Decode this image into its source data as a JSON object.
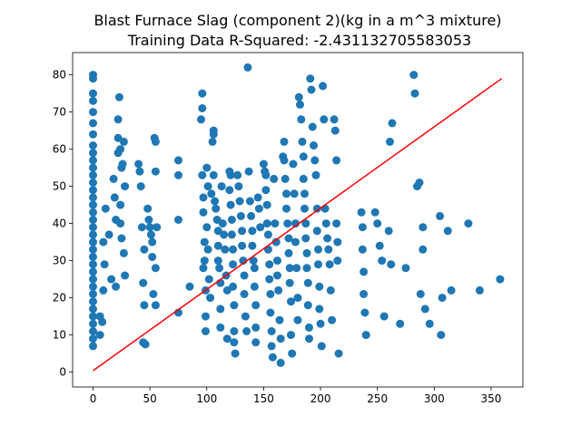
{
  "chart_data": {
    "type": "scatter",
    "title": "Blast Furnace Slag (component 2)(kg in a m^3 mixture)",
    "subtitle": "Training Data R-Squared: -2.431132705583053",
    "xlabel": "",
    "ylabel": "",
    "xlim": [
      -18,
      378
    ],
    "ylim": [
      -4,
      86
    ],
    "xticks": [
      0,
      50,
      100,
      150,
      200,
      250,
      300,
      350
    ],
    "yticks": [
      0,
      10,
      20,
      30,
      40,
      50,
      60,
      70,
      80
    ],
    "grid": false,
    "legend": "none",
    "colors": {
      "points": "#1f77b4",
      "fit_line": "#ff0000"
    },
    "fit_line": {
      "x": [
        0,
        359.4
      ],
      "y": [
        0.4,
        79
      ]
    },
    "series": [
      {
        "points": [
          [
            0,
            80
          ],
          [
            0,
            79
          ],
          [
            0,
            75
          ],
          [
            0,
            73
          ],
          [
            0,
            70
          ],
          [
            0,
            67
          ],
          [
            0,
            64
          ],
          [
            0,
            61
          ],
          [
            0,
            59
          ],
          [
            0,
            57
          ],
          [
            0,
            55
          ],
          [
            0,
            53
          ],
          [
            0,
            51
          ],
          [
            0,
            49
          ],
          [
            0,
            47
          ],
          [
            0,
            45
          ],
          [
            0,
            43
          ],
          [
            0,
            41
          ],
          [
            0,
            39
          ],
          [
            0,
            37
          ],
          [
            0,
            35
          ],
          [
            0,
            33
          ],
          [
            0,
            31
          ],
          [
            0,
            29
          ],
          [
            0,
            27
          ],
          [
            0,
            25
          ],
          [
            0,
            23
          ],
          [
            0,
            21
          ],
          [
            0,
            19
          ],
          [
            0,
            17
          ],
          [
            0,
            15
          ],
          [
            0,
            13
          ],
          [
            0,
            11
          ],
          [
            0,
            9
          ],
          [
            0,
            7
          ],
          [
            6,
            15
          ],
          [
            8,
            13.5
          ],
          [
            6,
            10
          ],
          [
            9,
            22
          ],
          [
            9,
            35
          ],
          [
            11,
            44
          ],
          [
            10,
            29
          ],
          [
            14,
            37
          ],
          [
            16,
            25
          ],
          [
            18,
            52
          ],
          [
            19,
            47
          ],
          [
            20,
            41
          ],
          [
            20,
            23
          ],
          [
            22,
            68
          ],
          [
            23,
            74
          ],
          [
            22,
            63
          ],
          [
            22,
            59
          ],
          [
            24,
            60
          ],
          [
            25,
            55
          ],
          [
            26,
            56
          ],
          [
            27,
            62
          ],
          [
            28,
            50
          ],
          [
            24,
            45
          ],
          [
            24,
            40
          ],
          [
            25,
            36
          ],
          [
            27,
            32
          ],
          [
            28,
            26
          ],
          [
            40,
            56
          ],
          [
            41,
            54
          ],
          [
            42,
            50
          ],
          [
            43,
            39
          ],
          [
            45,
            33
          ],
          [
            44,
            24
          ],
          [
            45,
            18
          ],
          [
            44,
            8
          ],
          [
            46,
            7.5
          ],
          [
            48,
            44
          ],
          [
            49,
            41
          ],
          [
            50,
            39
          ],
          [
            51,
            37
          ],
          [
            52,
            35
          ],
          [
            52,
            31
          ],
          [
            53,
            21
          ],
          [
            54,
            63
          ],
          [
            55,
            62
          ],
          [
            55,
            54
          ],
          [
            55,
            28
          ],
          [
            55,
            18
          ],
          [
            56,
            39
          ],
          [
            75,
            57
          ],
          [
            75,
            53
          ],
          [
            75,
            41
          ],
          [
            75,
            16
          ],
          [
            85,
            23
          ],
          [
            95,
            68
          ],
          [
            96,
            71
          ],
          [
            96,
            75
          ],
          [
            96,
            53
          ],
          [
            97,
            47
          ],
          [
            97,
            43
          ],
          [
            98,
            35
          ],
          [
            98,
            30
          ],
          [
            97,
            28
          ],
          [
            99,
            22
          ],
          [
            99,
            15
          ],
          [
            99,
            11
          ],
          [
            100,
            55
          ],
          [
            101,
            50
          ],
          [
            100,
            39
          ],
          [
            101,
            33
          ],
          [
            102,
            25
          ],
          [
            103,
            20
          ],
          [
            104,
            48
          ],
          [
            105,
            62
          ],
          [
            106,
            64
          ],
          [
            106,
            65
          ],
          [
            106,
            53
          ],
          [
            107,
            46
          ],
          [
            108,
            44
          ],
          [
            109,
            41
          ],
          [
            110,
            38
          ],
          [
            110,
            34
          ],
          [
            110,
            30
          ],
          [
            111,
            28
          ],
          [
            112,
            24
          ],
          [
            112,
            17
          ],
          [
            112,
            12
          ],
          [
            113,
            50
          ],
          [
            114,
            40
          ],
          [
            115,
            37
          ],
          [
            116,
            33
          ],
          [
            117,
            26
          ],
          [
            118,
            22
          ],
          [
            118,
            9
          ],
          [
            120,
            54
          ],
          [
            120,
            49
          ],
          [
            121,
            53
          ],
          [
            121,
            45
          ],
          [
            122,
            41
          ],
          [
            122,
            37
          ],
          [
            123,
            33
          ],
          [
            123,
            29
          ],
          [
            123,
            23
          ],
          [
            124,
            18
          ],
          [
            124,
            11
          ],
          [
            124,
            8
          ],
          [
            125,
            5
          ],
          [
            127,
            53
          ],
          [
            128,
            50
          ],
          [
            129,
            46
          ],
          [
            130,
            42
          ],
          [
            131,
            38
          ],
          [
            131,
            34
          ],
          [
            132,
            30
          ],
          [
            133,
            26
          ],
          [
            133,
            21
          ],
          [
            134,
            15
          ],
          [
            135,
            11
          ],
          [
            136,
            82
          ],
          [
            137,
            54
          ],
          [
            138,
            46
          ],
          [
            139,
            42
          ],
          [
            140,
            38
          ],
          [
            140,
            34
          ],
          [
            141,
            30
          ],
          [
            142,
            28
          ],
          [
            142,
            23
          ],
          [
            143,
            18
          ],
          [
            143,
            12
          ],
          [
            143,
            8
          ],
          [
            145,
            47
          ],
          [
            146,
            44
          ],
          [
            147,
            39
          ],
          [
            150,
            56
          ],
          [
            151,
            54
          ],
          [
            152,
            53
          ],
          [
            152,
            49
          ],
          [
            153,
            45
          ],
          [
            153,
            40
          ],
          [
            154,
            37
          ],
          [
            154,
            33
          ],
          [
            155,
            29
          ],
          [
            155,
            25
          ],
          [
            156,
            21
          ],
          [
            156,
            16
          ],
          [
            157,
            11
          ],
          [
            157,
            7
          ],
          [
            158,
            4
          ],
          [
            159,
            52
          ],
          [
            160,
            40
          ],
          [
            161,
            35
          ],
          [
            162,
            30
          ],
          [
            162,
            26
          ],
          [
            163,
            22
          ],
          [
            164,
            14
          ],
          [
            165,
            9
          ],
          [
            165,
            2.5
          ],
          [
            167,
            58
          ],
          [
            168,
            57
          ],
          [
            168,
            62
          ],
          [
            169,
            52
          ],
          [
            170,
            48
          ],
          [
            170,
            44
          ],
          [
            171,
            40
          ],
          [
            172,
            36
          ],
          [
            172,
            32
          ],
          [
            173,
            28
          ],
          [
            173,
            24
          ],
          [
            174,
            19
          ],
          [
            174,
            10
          ],
          [
            175,
            5
          ],
          [
            176,
            56
          ],
          [
            177,
            48
          ],
          [
            178,
            40
          ],
          [
            178,
            35
          ],
          [
            179,
            28
          ],
          [
            180,
            20
          ],
          [
            180,
            14
          ],
          [
            181,
            74
          ],
          [
            182,
            72
          ],
          [
            183,
            68
          ],
          [
            184,
            62
          ],
          [
            185,
            58
          ],
          [
            185,
            52
          ],
          [
            186,
            48
          ],
          [
            186,
            44
          ],
          [
            187,
            40
          ],
          [
            187,
            36
          ],
          [
            188,
            32
          ],
          [
            188,
            28
          ],
          [
            189,
            24
          ],
          [
            189,
            18
          ],
          [
            190,
            12
          ],
          [
            190,
            9
          ],
          [
            191,
            79
          ],
          [
            192,
            76
          ],
          [
            193,
            66
          ],
          [
            194,
            61
          ],
          [
            195,
            57
          ],
          [
            196,
            53
          ],
          [
            197,
            44
          ],
          [
            197,
            38
          ],
          [
            198,
            33
          ],
          [
            198,
            29
          ],
          [
            199,
            23
          ],
          [
            199,
            17
          ],
          [
            200,
            13
          ],
          [
            201,
            7
          ],
          [
            202,
            77
          ],
          [
            203,
            68
          ],
          [
            204,
            44
          ],
          [
            205,
            40
          ],
          [
            206,
            36
          ],
          [
            207,
            33
          ],
          [
            208,
            29
          ],
          [
            209,
            22
          ],
          [
            210,
            14
          ],
          [
            212,
            68
          ],
          [
            213,
            65
          ],
          [
            214,
            57
          ],
          [
            214,
            40
          ],
          [
            215,
            35
          ],
          [
            215,
            30
          ],
          [
            216,
            5
          ],
          [
            236,
            43
          ],
          [
            237,
            39
          ],
          [
            237,
            33
          ],
          [
            238,
            27
          ],
          [
            238,
            21
          ],
          [
            239,
            16
          ],
          [
            240,
            10
          ],
          [
            248,
            43
          ],
          [
            250,
            40
          ],
          [
            252,
            34
          ],
          [
            254,
            30
          ],
          [
            256,
            15
          ],
          [
            260,
            38
          ],
          [
            261,
            62
          ],
          [
            262,
            29
          ],
          [
            263,
            67
          ],
          [
            270,
            13
          ],
          [
            275,
            28
          ],
          [
            282,
            80
          ],
          [
            283,
            75
          ],
          [
            285,
            50
          ],
          [
            287,
            51
          ],
          [
            288,
            21
          ],
          [
            290,
            39
          ],
          [
            290,
            33
          ],
          [
            292,
            17
          ],
          [
            296,
            13
          ],
          [
            305,
            42
          ],
          [
            306,
            10
          ],
          [
            307,
            20
          ],
          [
            312,
            38
          ],
          [
            315,
            22
          ],
          [
            330,
            40
          ],
          [
            340,
            22
          ],
          [
            358,
            25
          ]
        ]
      }
    ]
  }
}
